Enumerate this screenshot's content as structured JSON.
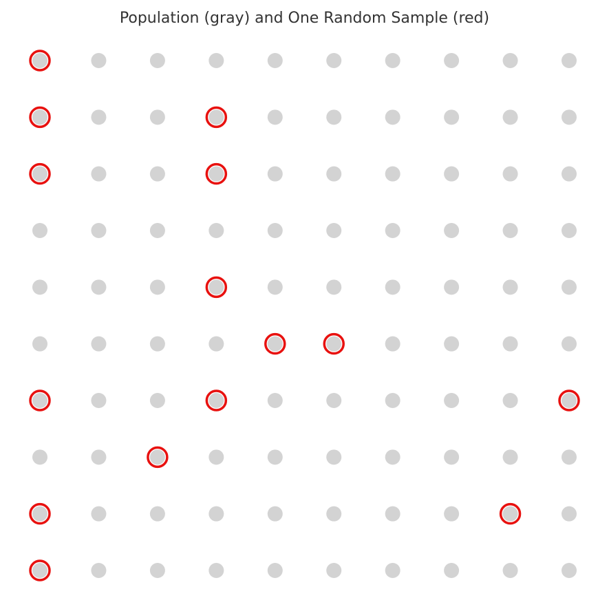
{
  "chart_data": {
    "type": "scatter",
    "title": "Population (gray) and One Random Sample (red)",
    "xlabel": "",
    "ylabel": "",
    "grid": false,
    "axes_visible": false,
    "population": {
      "columns": 10,
      "rows": 10,
      "color": "#d3d3d3"
    },
    "sample": {
      "color": "#e8110f",
      "points": [
        {
          "x": 0,
          "y": 9
        },
        {
          "x": 0,
          "y": 8
        },
        {
          "x": 0,
          "y": 7
        },
        {
          "x": 3,
          "y": 8
        },
        {
          "x": 3,
          "y": 7
        },
        {
          "x": 3,
          "y": 5
        },
        {
          "x": 4,
          "y": 4
        },
        {
          "x": 5,
          "y": 4
        },
        {
          "x": 0,
          "y": 3
        },
        {
          "x": 3,
          "y": 3
        },
        {
          "x": 9,
          "y": 3
        },
        {
          "x": 2,
          "y": 2
        },
        {
          "x": 0,
          "y": 1
        },
        {
          "x": 8,
          "y": 1
        },
        {
          "x": 0,
          "y": 0
        }
      ]
    }
  }
}
